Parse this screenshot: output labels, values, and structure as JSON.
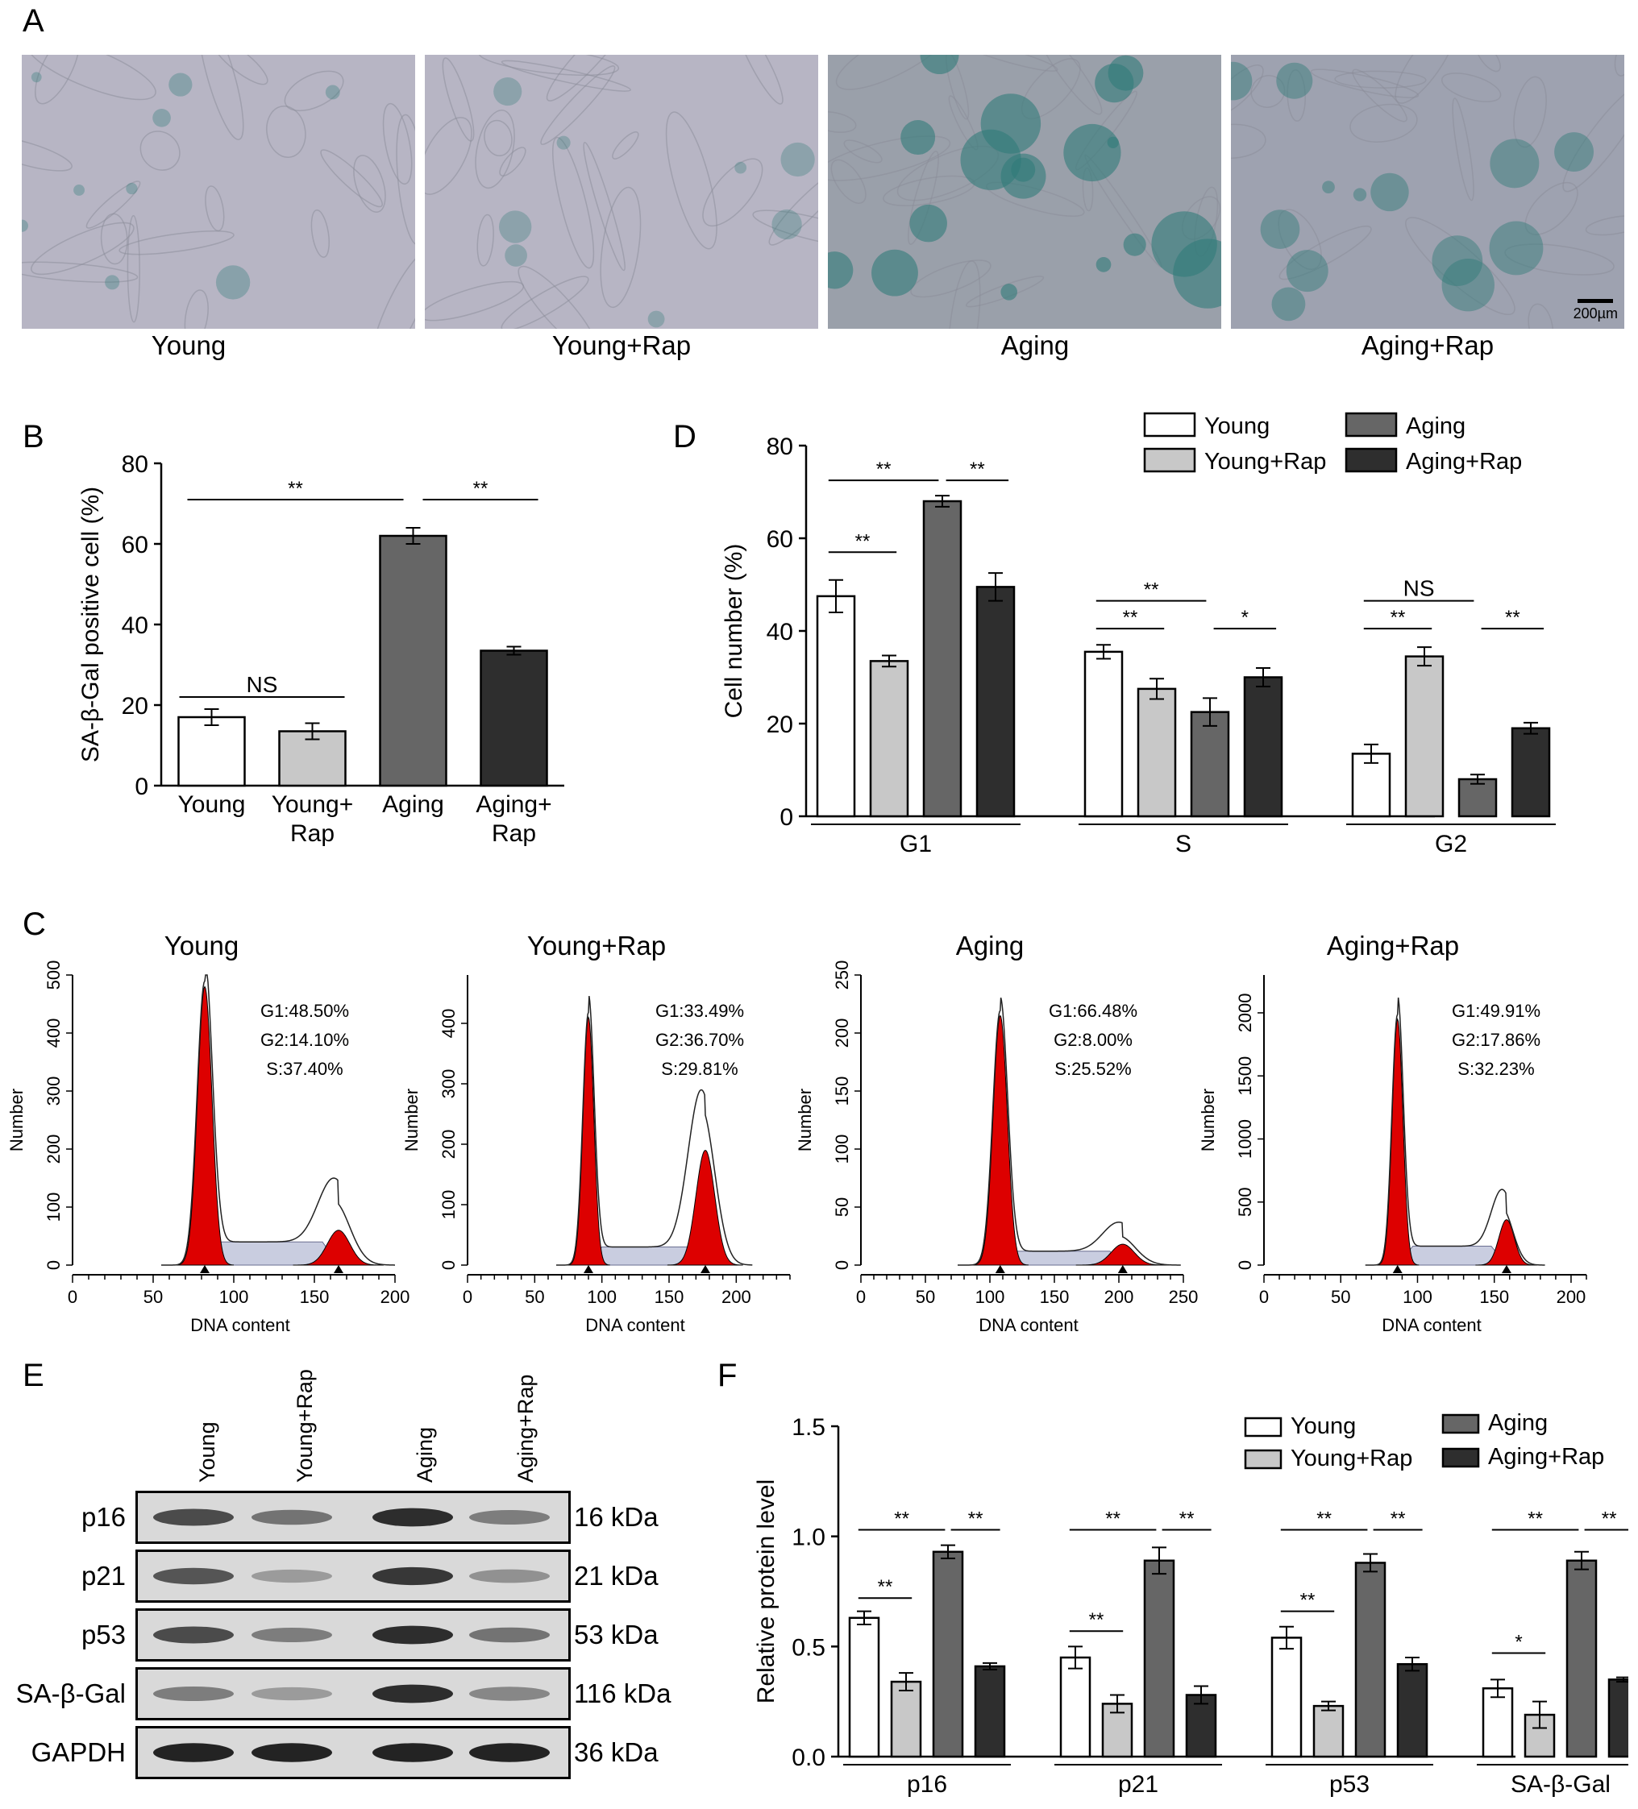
{
  "panels": {
    "A": {
      "letter": "A",
      "scale_bar": "200µm",
      "images": [
        {
          "caption": "Young",
          "stain_level": 0.2
        },
        {
          "caption": "Young+Rap",
          "stain_level": 0.15
        },
        {
          "caption": "Aging",
          "stain_level": 0.75
        },
        {
          "caption": "Aging+Rap",
          "stain_level": 0.45
        }
      ]
    },
    "B": {
      "letter": "B"
    },
    "C": {
      "letter": "C"
    },
    "D": {
      "letter": "D"
    },
    "E": {
      "letter": "E",
      "lanes": [
        "Young",
        "Young+Rap",
        "Aging",
        "Aging+Rap"
      ],
      "rows": [
        {
          "protein": "p16",
          "kda": "16 kDa",
          "intensity": [
            0.75,
            0.55,
            0.9,
            0.5
          ]
        },
        {
          "protein": "p21",
          "kda": "21 kDa",
          "intensity": [
            0.7,
            0.35,
            0.85,
            0.4
          ]
        },
        {
          "protein": "p53",
          "kda": "53 kDa",
          "intensity": [
            0.75,
            0.5,
            0.9,
            0.55
          ]
        },
        {
          "protein": "SA-β-Gal",
          "kda": "116 kDa",
          "intensity": [
            0.5,
            0.35,
            0.9,
            0.45
          ]
        },
        {
          "protein": "GAPDH",
          "kda": "36 kDa",
          "intensity": [
            0.95,
            0.95,
            0.95,
            0.95
          ]
        }
      ]
    },
    "F": {
      "letter": "F"
    }
  },
  "colors": {
    "young": "#ffffff",
    "young_rap": "#c8c8c8",
    "aging": "#666666",
    "aging_rap": "#2e2e2e",
    "histogram_fill": "#dd0000"
  },
  "chart_data": [
    {
      "id": "B",
      "type": "bar",
      "ylabel": "SA-β-Gal positive cell (%)",
      "ylim": [
        0,
        80
      ],
      "yticks": [
        0,
        20,
        40,
        60,
        80
      ],
      "categories": [
        "Young",
        "Young+\nRap",
        "Aging",
        "Aging+\nRap"
      ],
      "values": [
        17,
        13.5,
        62,
        33.5
      ],
      "errors": [
        2,
        2,
        2,
        1
      ],
      "significance": [
        {
          "from": 0,
          "to": 1,
          "label": "NS",
          "y": 22
        },
        {
          "from": 0,
          "to": 2,
          "label": "**",
          "y": 71
        },
        {
          "from": 2,
          "to": 3,
          "label": "**",
          "y": 71
        }
      ]
    },
    {
      "id": "D",
      "type": "bar",
      "ylabel": "Cell number (%)",
      "ylim": [
        0,
        80
      ],
      "yticks": [
        0,
        20,
        40,
        60,
        80
      ],
      "categories": [
        "G1",
        "S",
        "G2"
      ],
      "series": [
        {
          "name": "Young",
          "values": [
            47.5,
            35.5,
            13.5
          ],
          "errors": [
            3.5,
            1.5,
            2
          ]
        },
        {
          "name": "Young+Rap",
          "values": [
            33.5,
            27.5,
            34.5
          ],
          "errors": [
            1.2,
            2.2,
            2
          ]
        },
        {
          "name": "Aging",
          "values": [
            68,
            22.5,
            8
          ],
          "errors": [
            1.2,
            3,
            1
          ]
        },
        {
          "name": "Aging+Rap",
          "values": [
            49.5,
            30,
            19
          ],
          "errors": [
            3,
            2,
            1.2
          ]
        }
      ],
      "significance": [
        {
          "group": 0,
          "from": 0,
          "to": 1,
          "label": "**",
          "y": 57
        },
        {
          "group": 0,
          "from": 0,
          "to": 2,
          "label": "**",
          "y": 72.5
        },
        {
          "group": 0,
          "from": 2,
          "to": 3,
          "label": "**",
          "y": 72.5
        },
        {
          "group": 1,
          "from": 0,
          "to": 1,
          "label": "**",
          "y": 40.5
        },
        {
          "group": 1,
          "from": 0,
          "to": 2,
          "label": "**",
          "y": 46.5
        },
        {
          "group": 1,
          "from": 2,
          "to": 3,
          "label": "*",
          "y": 40.5
        },
        {
          "group": 2,
          "from": 0,
          "to": 1,
          "label": "**",
          "y": 40.5
        },
        {
          "group": 2,
          "from": 0,
          "to": 2,
          "label": "NS",
          "y": 46.5
        },
        {
          "group": 2,
          "from": 2,
          "to": 3,
          "label": "**",
          "y": 40.5
        }
      ]
    },
    {
      "id": "C",
      "type": "area",
      "xlabel": "DNA content",
      "ylabel": "Number",
      "plots": [
        {
          "title": "Young",
          "xlim": [
            0,
            200
          ],
          "xticks": [
            0,
            50,
            100,
            150,
            200
          ],
          "ylim": [
            0,
            500
          ],
          "yticks": [
            0,
            100,
            200,
            300,
            400,
            500
          ],
          "annot": [
            "G1:48.50%",
            "G2:14.10%",
            "S:37.40%"
          ],
          "g1_peak": 82,
          "g1_height": 480,
          "g1_width": 4.5,
          "g2_peak": 165,
          "g2_height": 60,
          "g2_width": 7,
          "s_level": 40,
          "envelope_g2": 110
        },
        {
          "title": "Young+Rap",
          "xlim": [
            0,
            240
          ],
          "xticks": [
            0,
            50,
            100,
            150,
            200
          ],
          "ylim": [
            0,
            480
          ],
          "yticks": [
            0,
            100,
            200,
            300,
            400
          ],
          "annot": [
            "G1:33.49%",
            "G2:36.70%",
            "S:29.81%"
          ],
          "g1_peak": 90,
          "g1_height": 410,
          "g1_width": 4,
          "g2_peak": 177,
          "g2_height": 190,
          "g2_width": 7,
          "s_level": 30,
          "envelope_g2": 260
        },
        {
          "title": "Aging",
          "xlim": [
            0,
            250
          ],
          "xticks": [
            0,
            50,
            100,
            150,
            200,
            250
          ],
          "ylim": [
            0,
            250
          ],
          "yticks": [
            0,
            50,
            100,
            150,
            200,
            250
          ],
          "annot": [
            "G1:66.48%",
            "G2:8.00%",
            "S:25.52%"
          ],
          "g1_peak": 108,
          "g1_height": 215,
          "g1_width": 5.5,
          "g2_peak": 203,
          "g2_height": 18,
          "g2_width": 9,
          "s_level": 12,
          "envelope_g2": 25
        },
        {
          "title": "Aging+Rap",
          "xlim": [
            0,
            210
          ],
          "xticks": [
            0,
            50,
            100,
            150,
            200
          ],
          "ylim": [
            0,
            2300
          ],
          "yticks": [
            0,
            500,
            1000,
            1500,
            2000
          ],
          "annot": [
            "G1:49.91%",
            "G2:17.86%",
            "S:32.23%"
          ],
          "g1_peak": 87,
          "g1_height": 1950,
          "g1_width": 3.5,
          "g2_peak": 158,
          "g2_height": 360,
          "g2_width": 5,
          "s_level": 150,
          "envelope_g2": 450
        }
      ]
    },
    {
      "id": "F",
      "type": "bar",
      "ylabel": "Relative protein level",
      "ylim": [
        0,
        1.5
      ],
      "yticks": [
        "0.0",
        "0.5",
        "1.0",
        "1.5"
      ],
      "categories": [
        "p16",
        "p21",
        "p53",
        "SA-β-Gal"
      ],
      "series": [
        {
          "name": "Young",
          "values": [
            0.63,
            0.45,
            0.54,
            0.31
          ],
          "errors": [
            0.03,
            0.05,
            0.05,
            0.04
          ]
        },
        {
          "name": "Young+Rap",
          "values": [
            0.34,
            0.24,
            0.23,
            0.19
          ],
          "errors": [
            0.04,
            0.04,
            0.02,
            0.06
          ]
        },
        {
          "name": "Aging",
          "values": [
            0.93,
            0.89,
            0.88,
            0.89
          ],
          "errors": [
            0.03,
            0.06,
            0.04,
            0.04
          ]
        },
        {
          "name": "Aging+Rap",
          "values": [
            0.41,
            0.28,
            0.42,
            0.35
          ],
          "errors": [
            0.015,
            0.04,
            0.03,
            0.01
          ]
        }
      ],
      "significance": [
        {
          "group": 0,
          "from": 0,
          "to": 1,
          "label": "**",
          "y": 0.72
        },
        {
          "group": 0,
          "from": 0,
          "to": 2,
          "label": "**",
          "y": 1.03
        },
        {
          "group": 0,
          "from": 2,
          "to": 3,
          "label": "**",
          "y": 1.03
        },
        {
          "group": 1,
          "from": 0,
          "to": 1,
          "label": "**",
          "y": 0.57
        },
        {
          "group": 1,
          "from": 0,
          "to": 2,
          "label": "**",
          "y": 1.03
        },
        {
          "group": 1,
          "from": 2,
          "to": 3,
          "label": "**",
          "y": 1.03
        },
        {
          "group": 2,
          "from": 0,
          "to": 1,
          "label": "**",
          "y": 0.66
        },
        {
          "group": 2,
          "from": 0,
          "to": 2,
          "label": "**",
          "y": 1.03
        },
        {
          "group": 2,
          "from": 2,
          "to": 3,
          "label": "**",
          "y": 1.03
        },
        {
          "group": 3,
          "from": 0,
          "to": 1,
          "label": "*",
          "y": 0.47
        },
        {
          "group": 3,
          "from": 0,
          "to": 2,
          "label": "**",
          "y": 1.03
        },
        {
          "group": 3,
          "from": 2,
          "to": 3,
          "label": "**",
          "y": 1.03
        }
      ]
    }
  ]
}
